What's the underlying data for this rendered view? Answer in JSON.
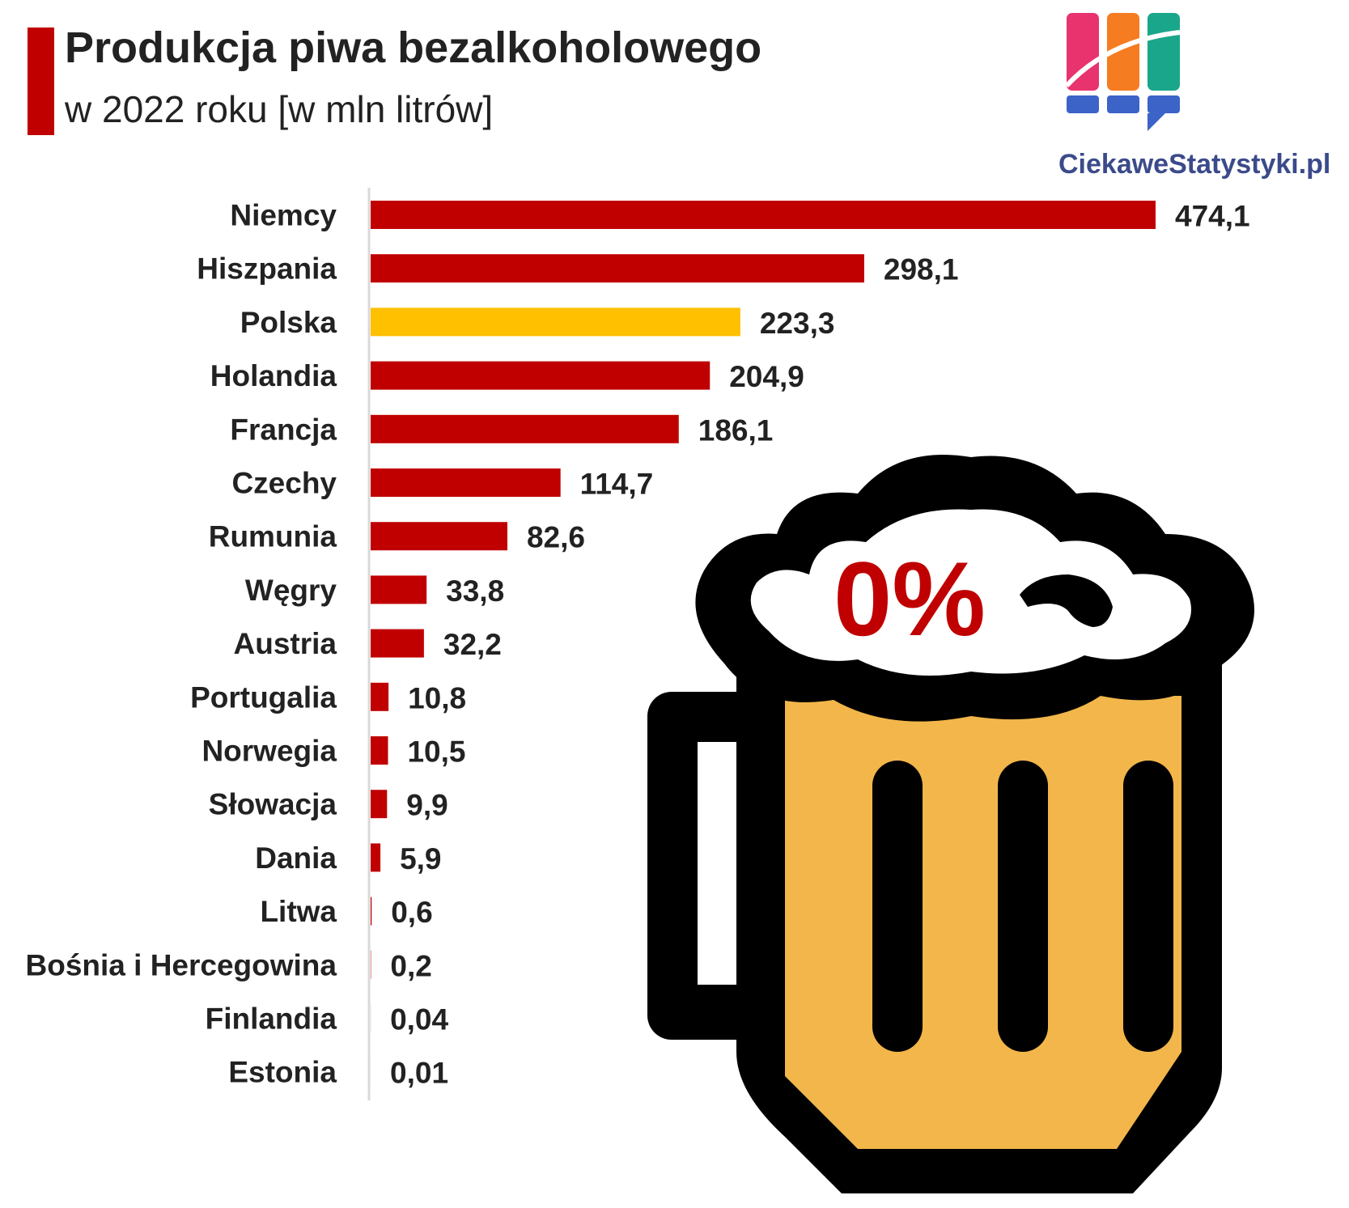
{
  "header": {
    "title": "Produkcja piwa bezalkoholowego",
    "subtitle": "w 2022 roku [w mln litrów]"
  },
  "logo": {
    "text": "CiekaweStatystyki.pl",
    "colors": [
      "#e8336e",
      "#f57c21",
      "#1aa68a",
      "#3c63c8"
    ]
  },
  "illustration": {
    "label": "0%",
    "icon": "beer-mug-icon",
    "colors": {
      "outline": "#000000",
      "beer": "#f2b64a",
      "foam": "#ffffff",
      "label": "#c00000"
    }
  },
  "chart_data": {
    "type": "bar",
    "orientation": "horizontal",
    "categories": [
      "Niemcy",
      "Hiszpania",
      "Polska",
      "Holandia",
      "Francja",
      "Czechy",
      "Rumunia",
      "Węgry",
      "Austria",
      "Portugalia",
      "Norwegia",
      "Słowacja",
      "Dania",
      "Litwa",
      "Bośnia i Hercegowina",
      "Finlandia",
      "Estonia"
    ],
    "values": [
      474.1,
      298.1,
      223.3,
      204.9,
      186.1,
      114.7,
      82.6,
      33.8,
      32.2,
      10.8,
      10.5,
      9.9,
      5.9,
      0.6,
      0.2,
      0.04,
      0.01
    ],
    "value_labels": [
      "474,1",
      "298,1",
      "223,3",
      "204,9",
      "186,1",
      "114,7",
      "82,6",
      "33,8",
      "32,2",
      "10,8",
      "10,5",
      "9,9",
      "5,9",
      "0,6",
      "0,2",
      "0,04",
      "0,01"
    ],
    "highlight": "Polska",
    "colors": {
      "bar": "#c00000",
      "highlight": "#ffc000",
      "axis": "#d9d9d9"
    },
    "xlim": [
      0,
      474.1
    ],
    "grid": false,
    "legend": "none"
  }
}
